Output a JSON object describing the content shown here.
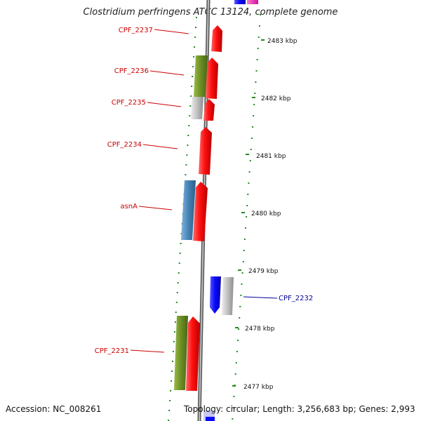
{
  "title": "Clostridium perfringens ATCC 13124, complete genome",
  "footer": {
    "accession": "Accession: NC_008261",
    "summary": "Topology: circular; Length: 3,256,683 bp; Genes: 2,993"
  },
  "scale": {
    "ticks_kbp": [
      "2483 kbp",
      "2482 kbp",
      "2481 kbp",
      "2480 kbp",
      "2479 kbp",
      "2478 kbp",
      "2477 kbp"
    ]
  },
  "genes": [
    {
      "name": "CPF_2237",
      "strand": "reverse",
      "color": "#cc0000"
    },
    {
      "name": "CPF_2236",
      "strand": "reverse",
      "color": "#cc0000"
    },
    {
      "name": "CPF_2235",
      "strand": "reverse",
      "color": "#cc0000"
    },
    {
      "name": "CPF_2234",
      "strand": "reverse",
      "color": "#cc0000"
    },
    {
      "name": "asnA",
      "strand": "reverse",
      "color": "#cc0000"
    },
    {
      "name": "CPF_2232",
      "strand": "forward",
      "color": "#000099"
    },
    {
      "name": "CPF_2231",
      "strand": "reverse",
      "color": "#cc0000"
    }
  ],
  "colors": {
    "red_gene": "#ff1010",
    "blue_gene": "#0a0aff",
    "olive": "#6b8e23",
    "steel": "#4682b4",
    "silver": "#c0c0c0",
    "backbone": "#888888",
    "tick": "#228b22"
  }
}
